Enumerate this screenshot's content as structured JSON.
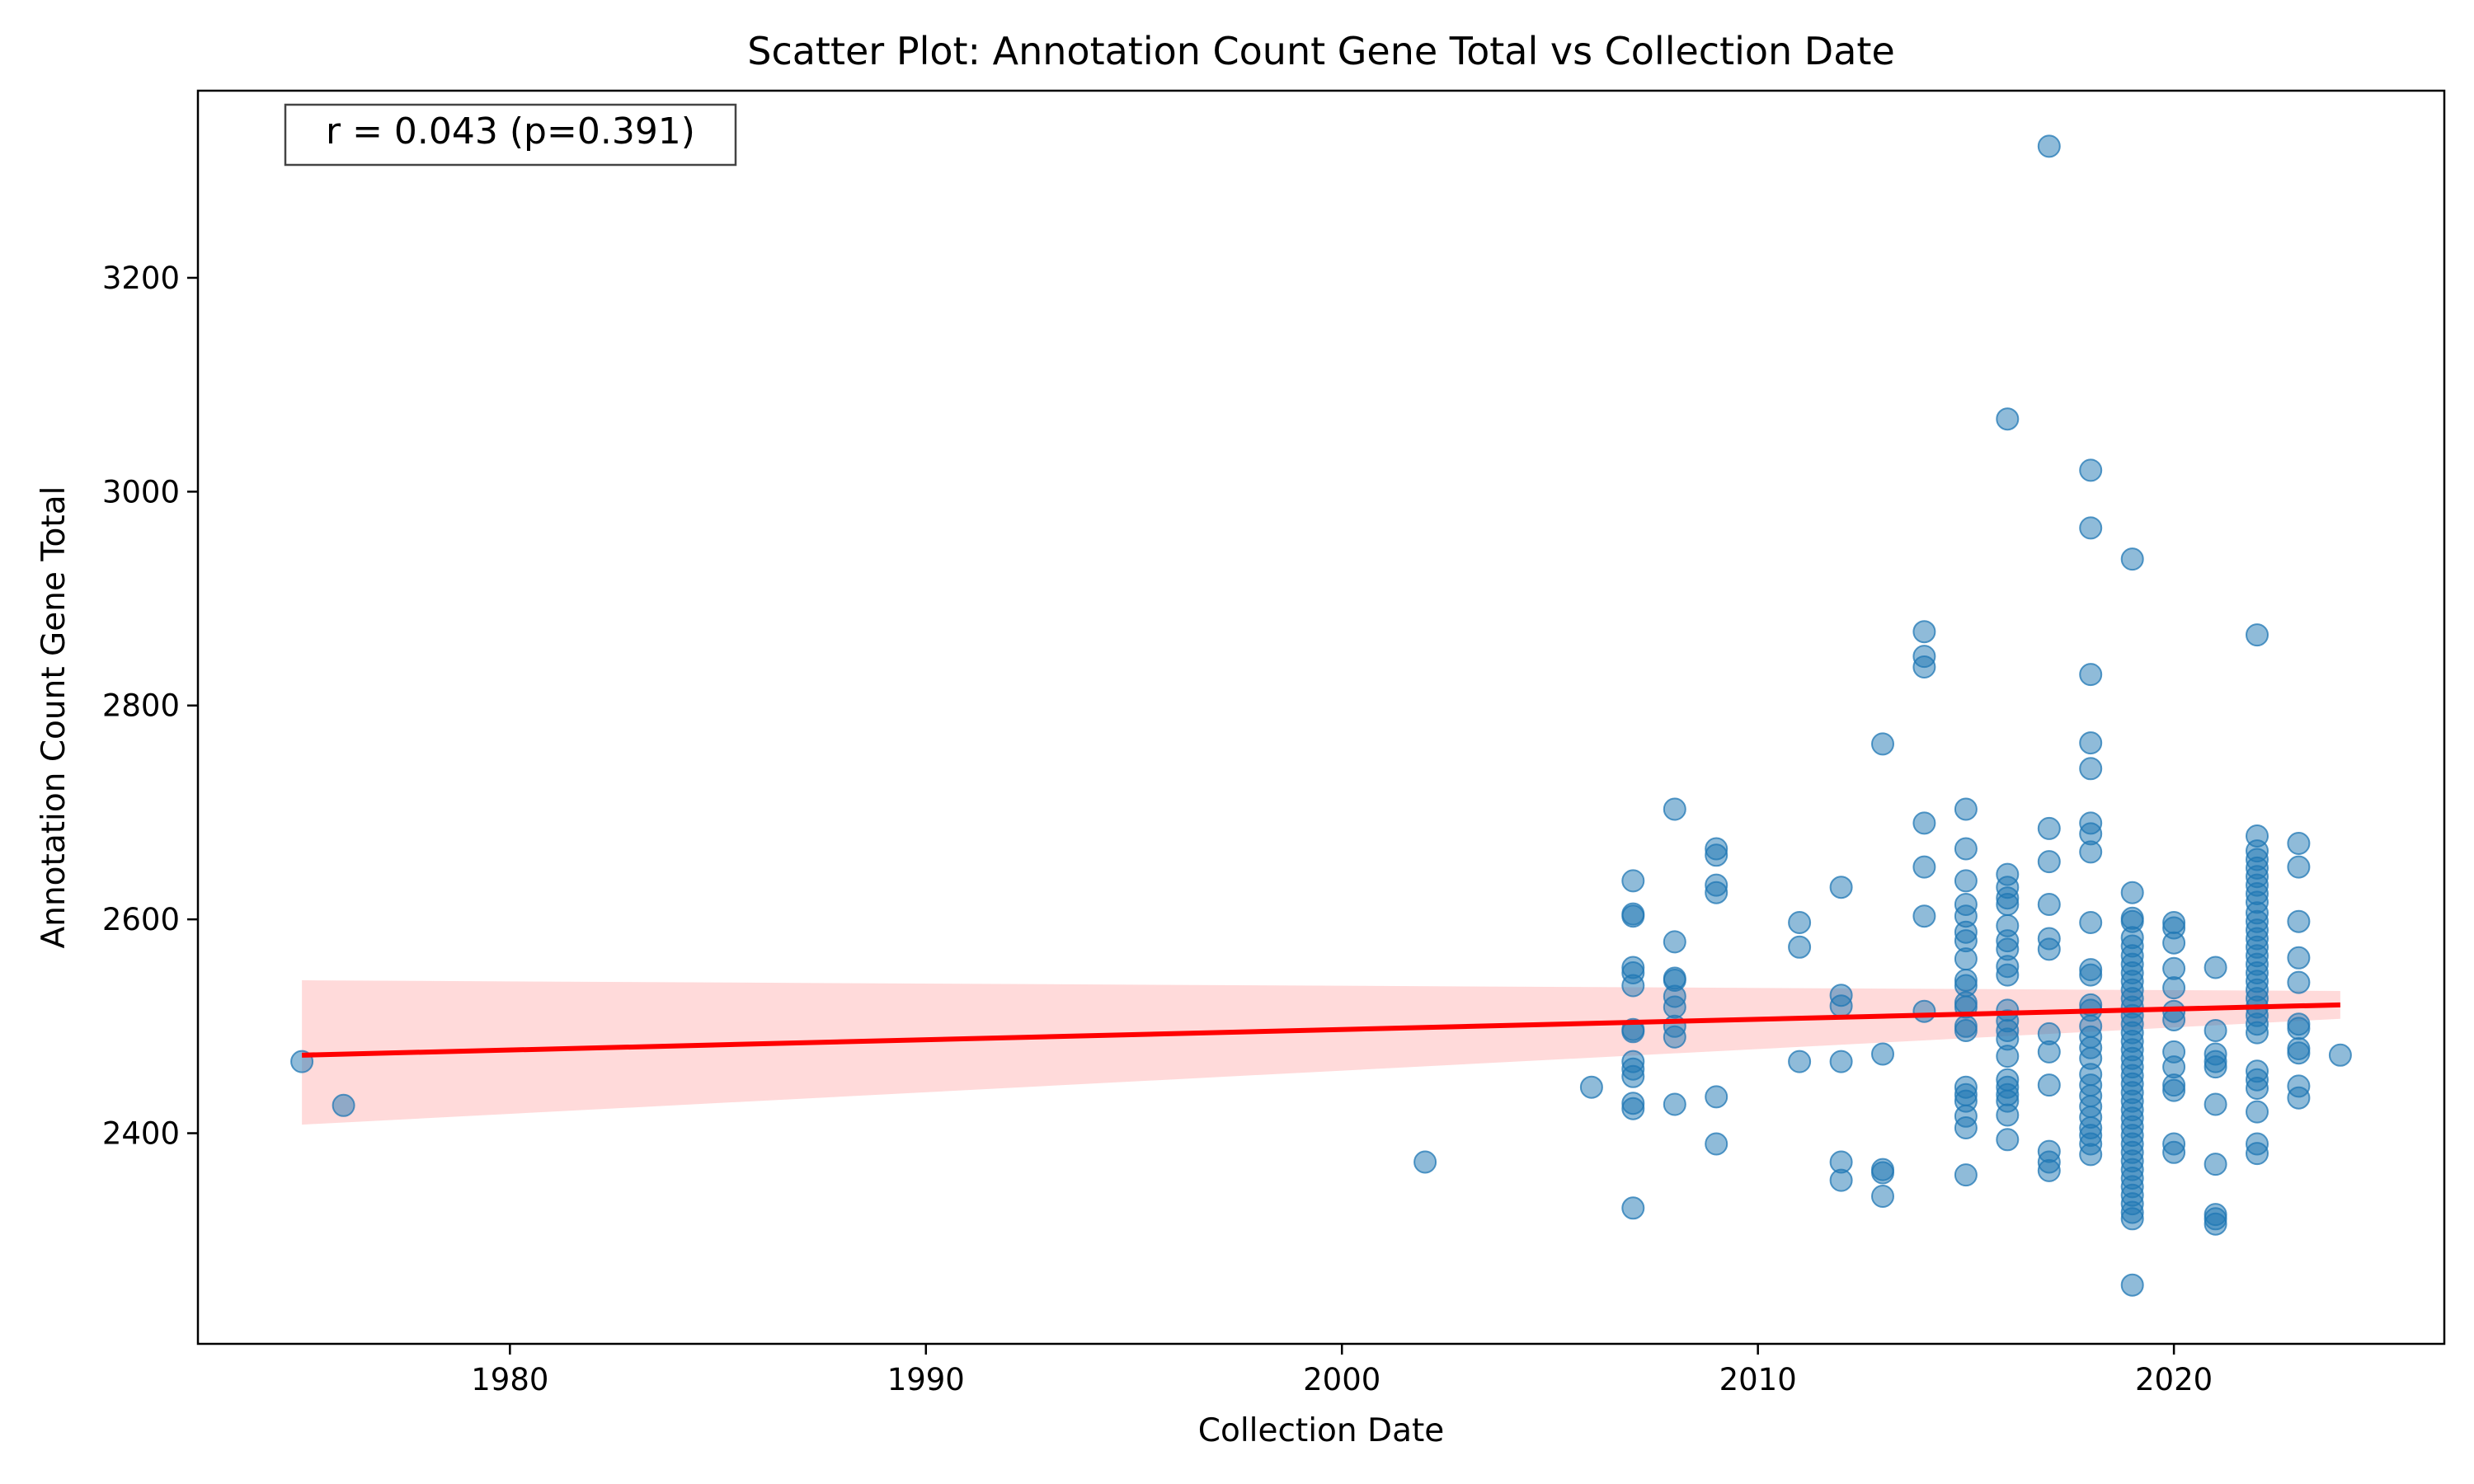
{
  "chart_data": {
    "type": "scatter",
    "title": "Scatter Plot: Annotation Count Gene Total vs Collection Date",
    "xlabel": "Collection Date",
    "ylabel": "Annotation Count Gene Total",
    "xlim": [
      1972.5,
      2026.5
    ],
    "ylim": [
      2203,
      3375
    ],
    "xticks": [
      1980,
      1990,
      2000,
      2010,
      2020
    ],
    "yticks": [
      2400,
      2600,
      2800,
      3000,
      3200
    ],
    "xtick_labels": [
      "1980",
      "1990",
      "2000",
      "2010",
      "2020"
    ],
    "ytick_labels": [
      "2400",
      "2600",
      "2800",
      "3000",
      "3200"
    ],
    "grid": false,
    "annotation": "r = 0.043 (p=0.391)",
    "colors": {
      "points": "#1f77b4",
      "regression_line": "#ff0000",
      "confidence_band": "#ffd6d6"
    },
    "regression": {
      "x": [
        1975,
        2024
      ],
      "y": [
        2473,
        2520
      ],
      "ci_upper": [
        2543,
        2533
      ],
      "ci_lower": [
        2408,
        2507
      ]
    },
    "points": [
      [
        1975,
        2467
      ],
      [
        1976,
        2426
      ],
      [
        2002,
        2373
      ],
      [
        2006,
        2443
      ],
      [
        2007,
        2636
      ],
      [
        2007,
        2605
      ],
      [
        2007,
        2603
      ],
      [
        2007,
        2555
      ],
      [
        2007,
        2550
      ],
      [
        2007,
        2538
      ],
      [
        2007,
        2497
      ],
      [
        2007,
        2495
      ],
      [
        2007,
        2467
      ],
      [
        2007,
        2460
      ],
      [
        2007,
        2453
      ],
      [
        2007,
        2428
      ],
      [
        2007,
        2423
      ],
      [
        2007,
        2330
      ],
      [
        2008,
        2703
      ],
      [
        2008,
        2579
      ],
      [
        2008,
        2545
      ],
      [
        2008,
        2543
      ],
      [
        2008,
        2528
      ],
      [
        2008,
        2518
      ],
      [
        2008,
        2500
      ],
      [
        2008,
        2490
      ],
      [
        2008,
        2427
      ],
      [
        2009,
        2666
      ],
      [
        2009,
        2660
      ],
      [
        2009,
        2632
      ],
      [
        2009,
        2625
      ],
      [
        2009,
        2434
      ],
      [
        2009,
        2390
      ],
      [
        2011,
        2597
      ],
      [
        2011,
        2574
      ],
      [
        2011,
        2467
      ],
      [
        2012,
        2630
      ],
      [
        2012,
        2529
      ],
      [
        2012,
        2519
      ],
      [
        2012,
        2467
      ],
      [
        2012,
        2373
      ],
      [
        2012,
        2356
      ],
      [
        2013,
        2764
      ],
      [
        2013,
        2474
      ],
      [
        2013,
        2366
      ],
      [
        2013,
        2363
      ],
      [
        2013,
        2341
      ],
      [
        2014,
        2869
      ],
      [
        2014,
        2846
      ],
      [
        2014,
        2836
      ],
      [
        2014,
        2690
      ],
      [
        2014,
        2649
      ],
      [
        2014,
        2603
      ],
      [
        2014,
        2514
      ],
      [
        2015,
        2703
      ],
      [
        2015,
        2666
      ],
      [
        2015,
        2636
      ],
      [
        2015,
        2614
      ],
      [
        2015,
        2603
      ],
      [
        2015,
        2588
      ],
      [
        2015,
        2580
      ],
      [
        2015,
        2563
      ],
      [
        2015,
        2543
      ],
      [
        2015,
        2538
      ],
      [
        2015,
        2522
      ],
      [
        2015,
        2518
      ],
      [
        2015,
        2500
      ],
      [
        2015,
        2496
      ],
      [
        2015,
        2443
      ],
      [
        2015,
        2436
      ],
      [
        2015,
        2430
      ],
      [
        2015,
        2416
      ],
      [
        2015,
        2405
      ],
      [
        2015,
        2361
      ],
      [
        2016,
        3068
      ],
      [
        2016,
        2642
      ],
      [
        2016,
        2630
      ],
      [
        2016,
        2620
      ],
      [
        2016,
        2614
      ],
      [
        2016,
        2594
      ],
      [
        2016,
        2580
      ],
      [
        2016,
        2572
      ],
      [
        2016,
        2556
      ],
      [
        2016,
        2548
      ],
      [
        2016,
        2515
      ],
      [
        2016,
        2505
      ],
      [
        2016,
        2496
      ],
      [
        2016,
        2488
      ],
      [
        2016,
        2472
      ],
      [
        2016,
        2450
      ],
      [
        2016,
        2443
      ],
      [
        2016,
        2436
      ],
      [
        2016,
        2430
      ],
      [
        2016,
        2417
      ],
      [
        2016,
        2394
      ],
      [
        2017,
        3323
      ],
      [
        2017,
        2685
      ],
      [
        2017,
        2654
      ],
      [
        2017,
        2614
      ],
      [
        2017,
        2582
      ],
      [
        2017,
        2572
      ],
      [
        2017,
        2493
      ],
      [
        2017,
        2476
      ],
      [
        2017,
        2445
      ],
      [
        2017,
        2383
      ],
      [
        2017,
        2373
      ],
      [
        2017,
        2365
      ],
      [
        2018,
        3020
      ],
      [
        2018,
        2966
      ],
      [
        2018,
        2829
      ],
      [
        2018,
        2765
      ],
      [
        2018,
        2741
      ],
      [
        2018,
        2690
      ],
      [
        2018,
        2680
      ],
      [
        2018,
        2663
      ],
      [
        2018,
        2597
      ],
      [
        2018,
        2553
      ],
      [
        2018,
        2548
      ],
      [
        2018,
        2520
      ],
      [
        2018,
        2515
      ],
      [
        2018,
        2500
      ],
      [
        2018,
        2490
      ],
      [
        2018,
        2480
      ],
      [
        2018,
        2470
      ],
      [
        2018,
        2455
      ],
      [
        2018,
        2445
      ],
      [
        2018,
        2435
      ],
      [
        2018,
        2425
      ],
      [
        2018,
        2415
      ],
      [
        2018,
        2405
      ],
      [
        2018,
        2398
      ],
      [
        2018,
        2390
      ],
      [
        2018,
        2380
      ],
      [
        2019,
        2937
      ],
      [
        2019,
        2625
      ],
      [
        2019,
        2601
      ],
      [
        2019,
        2598
      ],
      [
        2019,
        2583
      ],
      [
        2019,
        2575
      ],
      [
        2019,
        2566
      ],
      [
        2019,
        2558
      ],
      [
        2019,
        2550
      ],
      [
        2019,
        2542
      ],
      [
        2019,
        2534
      ],
      [
        2019,
        2526
      ],
      [
        2019,
        2518
      ],
      [
        2019,
        2510
      ],
      [
        2019,
        2502
      ],
      [
        2019,
        2494
      ],
      [
        2019,
        2486
      ],
      [
        2019,
        2478
      ],
      [
        2019,
        2470
      ],
      [
        2019,
        2462
      ],
      [
        2019,
        2454
      ],
      [
        2019,
        2446
      ],
      [
        2019,
        2438
      ],
      [
        2019,
        2430
      ],
      [
        2019,
        2422
      ],
      [
        2019,
        2414
      ],
      [
        2019,
        2406
      ],
      [
        2019,
        2398
      ],
      [
        2019,
        2390
      ],
      [
        2019,
        2382
      ],
      [
        2019,
        2374
      ],
      [
        2019,
        2366
      ],
      [
        2019,
        2358
      ],
      [
        2019,
        2350
      ],
      [
        2019,
        2342
      ],
      [
        2019,
        2334
      ],
      [
        2019,
        2326
      ],
      [
        2019,
        2320
      ],
      [
        2019,
        2258
      ],
      [
        2020,
        2597
      ],
      [
        2020,
        2592
      ],
      [
        2020,
        2578
      ],
      [
        2020,
        2554
      ],
      [
        2020,
        2536
      ],
      [
        2020,
        2514
      ],
      [
        2020,
        2506
      ],
      [
        2020,
        2476
      ],
      [
        2020,
        2462
      ],
      [
        2020,
        2445
      ],
      [
        2020,
        2440
      ],
      [
        2020,
        2390
      ],
      [
        2020,
        2382
      ],
      [
        2021,
        2555
      ],
      [
        2021,
        2496
      ],
      [
        2021,
        2474
      ],
      [
        2021,
        2467
      ],
      [
        2021,
        2462
      ],
      [
        2021,
        2427
      ],
      [
        2021,
        2371
      ],
      [
        2021,
        2324
      ],
      [
        2021,
        2320
      ],
      [
        2021,
        2315
      ],
      [
        2022,
        2866
      ],
      [
        2022,
        2678
      ],
      [
        2022,
        2664
      ],
      [
        2022,
        2656
      ],
      [
        2022,
        2648
      ],
      [
        2022,
        2640
      ],
      [
        2022,
        2632
      ],
      [
        2022,
        2624
      ],
      [
        2022,
        2616
      ],
      [
        2022,
        2606
      ],
      [
        2022,
        2598
      ],
      [
        2022,
        2590
      ],
      [
        2022,
        2582
      ],
      [
        2022,
        2574
      ],
      [
        2022,
        2566
      ],
      [
        2022,
        2558
      ],
      [
        2022,
        2550
      ],
      [
        2022,
        2542
      ],
      [
        2022,
        2534
      ],
      [
        2022,
        2526
      ],
      [
        2022,
        2518
      ],
      [
        2022,
        2510
      ],
      [
        2022,
        2502
      ],
      [
        2022,
        2494
      ],
      [
        2022,
        2458
      ],
      [
        2022,
        2450
      ],
      [
        2022,
        2442
      ],
      [
        2022,
        2420
      ],
      [
        2022,
        2390
      ],
      [
        2022,
        2381
      ],
      [
        2023,
        2671
      ],
      [
        2023,
        2649
      ],
      [
        2023,
        2598
      ],
      [
        2023,
        2564
      ],
      [
        2023,
        2541
      ],
      [
        2023,
        2502
      ],
      [
        2023,
        2498
      ],
      [
        2023,
        2479
      ],
      [
        2023,
        2475
      ],
      [
        2023,
        2444
      ],
      [
        2023,
        2433
      ],
      [
        2024,
        2473
      ]
    ]
  }
}
